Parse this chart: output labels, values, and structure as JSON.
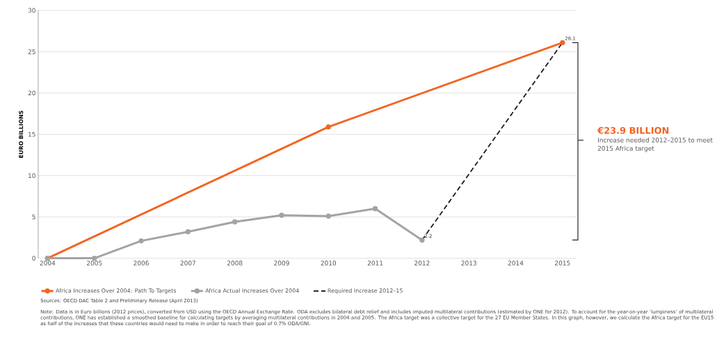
{
  "chart_data": {
    "type": "line",
    "ylabel": "EURO BILLIONS",
    "series": [
      {
        "name": "Africa Increases Over 2004: Path To Targets",
        "color": "#f26522",
        "x": [
          2004,
          2010,
          2015
        ],
        "values": [
          0,
          15.9,
          26.1
        ],
        "marker": "circle"
      },
      {
        "name": "Africa Actual Increases Over 2004",
        "color": "#a3a3a3",
        "x": [
          2004,
          2005,
          2006,
          2007,
          2008,
          2009,
          2010,
          2011,
          2012
        ],
        "values": [
          0,
          0,
          2.1,
          3.2,
          4.4,
          5.2,
          5.1,
          6.0,
          2.2
        ],
        "marker": "circle"
      },
      {
        "name": "Required Increase 2012–15",
        "color": "#1a1a1a",
        "x": [
          2012,
          2015
        ],
        "values": [
          2.2,
          26.1
        ],
        "line_style": "dashed",
        "marker": "none"
      }
    ],
    "xlim": [
      2003.8,
      2015.3
    ],
    "ylim": [
      0,
      30
    ],
    "xticks": [
      2004,
      2005,
      2006,
      2007,
      2008,
      2009,
      2010,
      2011,
      2012,
      2013,
      2014,
      2015
    ],
    "yticks": [
      0,
      5,
      10,
      15,
      20,
      25,
      30
    ],
    "grid": "y",
    "legend": "bottom",
    "line_style": "solid",
    "annotations": [
      {
        "text": "26.1",
        "x": 2015,
        "y": 26.1
      },
      {
        "text": "2.2",
        "x": 2012,
        "y": 2.2
      },
      "€23.9 BILLION",
      "Increase needed 2012–2015 to meet 2015 Africa target",
      "Sources: OECD DAC Table 2 and Preliminary Release (April 2013)",
      "Note: Data is in Euro billions (2012 prices), converted from USD using the OECD Annual Exchange Rate. ODA excludes bilateral debt relief and includes imputed multilateral contributions (estimated by ONE for 2012). To account for the year-on-year ‘lumpiness’ of multilateral contributions, ONE has established a smoothed baseline for calculating targets by averaging multilateral contributions in 2004 and 2005. The Africa target was a collective target for the 27 EU Member States. In this graph, however, we calculate the Africa target for the EU15 as half of the increases that these countries would need to make in order to reach their goal of 0.7% ODA/GNI."
    ]
  }
}
